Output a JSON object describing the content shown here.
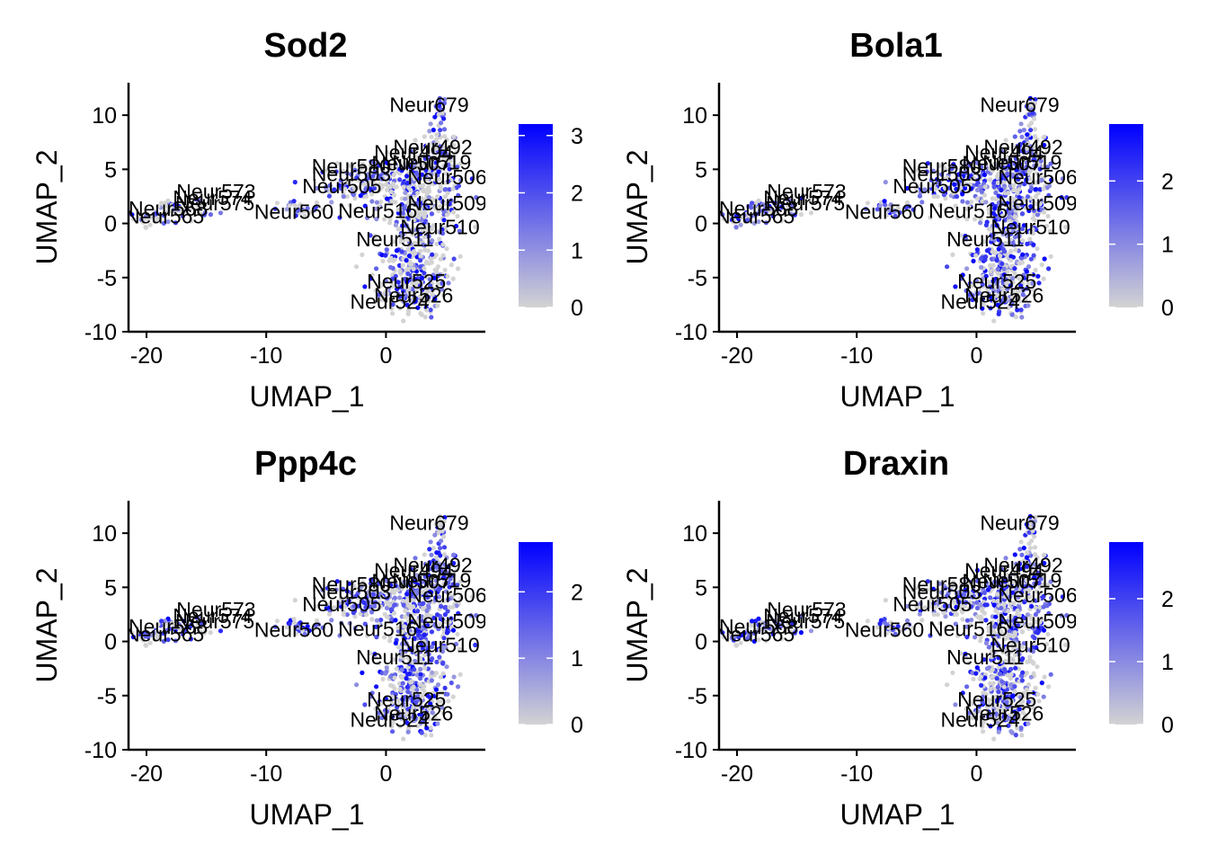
{
  "colors": {
    "low": "#d3d3d3",
    "high": "#0000ff",
    "mid": "#8f7fe6",
    "axis": "#000000"
  },
  "chart_data": [
    {
      "type": "scatter",
      "title": "Sod2",
      "xlabel": "UMAP_1",
      "ylabel": "UMAP_2",
      "xlim": [
        -21.5,
        8.3
      ],
      "ylim": [
        -10,
        13
      ],
      "xticks": [
        -20,
        -10,
        0
      ],
      "yticks": [
        -10,
        -5,
        0,
        5,
        10
      ],
      "legend": {
        "min": 0,
        "max": 3.2,
        "ticks": [
          0,
          1,
          2,
          3
        ],
        "position": "right"
      },
      "expression_level": 0.45,
      "cluster_labels": [
        {
          "text": "Neur679",
          "x": 0.3,
          "y": 10.3
        },
        {
          "text": "Neur492",
          "x": 0.6,
          "y": 6.4
        },
        {
          "text": "Neur494",
          "x": -1.0,
          "y": 5.9
        },
        {
          "text": "Neur519",
          "x": 0.5,
          "y": 5.0
        },
        {
          "text": "Neur507",
          "x": -1.2,
          "y": 4.9
        },
        {
          "text": "Neur506",
          "x": 1.8,
          "y": 3.6
        },
        {
          "text": "Neur580",
          "x": -6.2,
          "y": 4.6
        },
        {
          "text": "Neur503",
          "x": -6.2,
          "y": 3.9
        },
        {
          "text": "Neur505",
          "x": -7.0,
          "y": 2.8
        },
        {
          "text": "Neur509",
          "x": 1.8,
          "y": 1.2
        },
        {
          "text": "Neur516",
          "x": -4.0,
          "y": 0.5
        },
        {
          "text": "Neur560",
          "x": -11.0,
          "y": 0.4
        },
        {
          "text": "Neur510",
          "x": 1.2,
          "y": -1.0
        },
        {
          "text": "Neur511",
          "x": -2.5,
          "y": -2.1
        },
        {
          "text": "Neur573",
          "x": -17.5,
          "y": 2.3
        },
        {
          "text": "Neur574",
          "x": -17.8,
          "y": 1.7
        },
        {
          "text": "Neur575",
          "x": -17.6,
          "y": 1.2
        },
        {
          "text": "Neur568",
          "x": -21.5,
          "y": 0.7
        },
        {
          "text": "Neur565",
          "x": -21.8,
          "y": 0.0
        },
        {
          "text": "Neur525",
          "x": -1.6,
          "y": -6.0
        },
        {
          "text": "Neur526",
          "x": -1.0,
          "y": -7.3
        },
        {
          "text": "Neur524",
          "x": -3.0,
          "y": -7.9
        }
      ]
    },
    {
      "type": "scatter",
      "title": "Bola1",
      "xlabel": "UMAP_1",
      "ylabel": "UMAP_2",
      "xlim": [
        -21.5,
        8.3
      ],
      "ylim": [
        -10,
        13
      ],
      "xticks": [
        -20,
        -10,
        0
      ],
      "yticks": [
        -10,
        -5,
        0,
        5,
        10
      ],
      "legend": {
        "min": 0,
        "max": 2.9,
        "ticks": [
          0,
          1,
          2
        ],
        "position": "right"
      },
      "expression_level": 0.55,
      "cluster_labels": [
        {
          "text": "Neur679",
          "x": 0.3,
          "y": 10.3
        },
        {
          "text": "Neur492",
          "x": 0.6,
          "y": 6.4
        },
        {
          "text": "Neur494",
          "x": -1.0,
          "y": 5.9
        },
        {
          "text": "Neur519",
          "x": 0.5,
          "y": 5.0
        },
        {
          "text": "Neur507",
          "x": -1.2,
          "y": 4.9
        },
        {
          "text": "Neur506",
          "x": 1.8,
          "y": 3.6
        },
        {
          "text": "Neur580",
          "x": -6.2,
          "y": 4.6
        },
        {
          "text": "Neur503",
          "x": -6.2,
          "y": 3.9
        },
        {
          "text": "Neur505",
          "x": -7.0,
          "y": 2.8
        },
        {
          "text": "Neur509",
          "x": 1.8,
          "y": 1.2
        },
        {
          "text": "Neur516",
          "x": -4.0,
          "y": 0.5
        },
        {
          "text": "Neur560",
          "x": -11.0,
          "y": 0.4
        },
        {
          "text": "Neur510",
          "x": 1.2,
          "y": -1.0
        },
        {
          "text": "Neur511",
          "x": -2.5,
          "y": -2.1
        },
        {
          "text": "Neur573",
          "x": -17.5,
          "y": 2.3
        },
        {
          "text": "Neur574",
          "x": -17.8,
          "y": 1.7
        },
        {
          "text": "Neur575",
          "x": -17.6,
          "y": 1.2
        },
        {
          "text": "Neur568",
          "x": -21.5,
          "y": 0.7
        },
        {
          "text": "Neur565",
          "x": -21.8,
          "y": 0.0
        },
        {
          "text": "Neur525",
          "x": -1.6,
          "y": -6.0
        },
        {
          "text": "Neur526",
          "x": -1.0,
          "y": -7.3
        },
        {
          "text": "Neur524",
          "x": -3.0,
          "y": -7.9
        }
      ]
    },
    {
      "type": "scatter",
      "title": "Ppp4c",
      "xlabel": "UMAP_1",
      "ylabel": "UMAP_2",
      "xlim": [
        -21.5,
        8.3
      ],
      "ylim": [
        -10,
        13
      ],
      "xticks": [
        -20,
        -10,
        0
      ],
      "yticks": [
        -10,
        -5,
        0,
        5,
        10
      ],
      "legend": {
        "min": 0,
        "max": 2.75,
        "ticks": [
          0,
          1,
          2
        ],
        "position": "right"
      },
      "expression_level": 0.6,
      "cluster_labels": [
        {
          "text": "Neur679",
          "x": 0.3,
          "y": 10.3
        },
        {
          "text": "Neur492",
          "x": 0.6,
          "y": 6.4
        },
        {
          "text": "Neur494",
          "x": -1.0,
          "y": 5.9
        },
        {
          "text": "Neur519",
          "x": 0.5,
          "y": 5.0
        },
        {
          "text": "Neur507",
          "x": -1.2,
          "y": 4.9
        },
        {
          "text": "Neur506",
          "x": 1.8,
          "y": 3.6
        },
        {
          "text": "Neur580",
          "x": -6.2,
          "y": 4.6
        },
        {
          "text": "Neur503",
          "x": -6.2,
          "y": 3.9
        },
        {
          "text": "Neur505",
          "x": -7.0,
          "y": 2.8
        },
        {
          "text": "Neur509",
          "x": 1.8,
          "y": 1.2
        },
        {
          "text": "Neur516",
          "x": -4.0,
          "y": 0.5
        },
        {
          "text": "Neur560",
          "x": -11.0,
          "y": 0.4
        },
        {
          "text": "Neur510",
          "x": 1.2,
          "y": -1.0
        },
        {
          "text": "Neur511",
          "x": -2.5,
          "y": -2.1
        },
        {
          "text": "Neur573",
          "x": -17.5,
          "y": 2.3
        },
        {
          "text": "Neur574",
          "x": -17.8,
          "y": 1.7
        },
        {
          "text": "Neur575",
          "x": -17.6,
          "y": 1.2
        },
        {
          "text": "Neur568",
          "x": -21.5,
          "y": 0.7
        },
        {
          "text": "Neur565",
          "x": -21.8,
          "y": 0.0
        },
        {
          "text": "Neur525",
          "x": -1.6,
          "y": -6.0
        },
        {
          "text": "Neur526",
          "x": -1.0,
          "y": -7.3
        },
        {
          "text": "Neur524",
          "x": -3.0,
          "y": -7.9
        }
      ]
    },
    {
      "type": "scatter",
      "title": "Draxin",
      "xlabel": "UMAP_1",
      "ylabel": "UMAP_2",
      "xlim": [
        -21.5,
        8.3
      ],
      "ylim": [
        -10,
        13
      ],
      "xticks": [
        -20,
        -10,
        0
      ],
      "yticks": [
        -10,
        -5,
        0,
        5,
        10
      ],
      "legend": {
        "min": 0,
        "max": 2.9,
        "ticks": [
          0,
          1,
          2
        ],
        "position": "right"
      },
      "expression_level": 0.5,
      "cluster_labels": [
        {
          "text": "Neur679",
          "x": 0.3,
          "y": 10.3
        },
        {
          "text": "Neur492",
          "x": 0.6,
          "y": 6.4
        },
        {
          "text": "Neur494",
          "x": -1.0,
          "y": 5.9
        },
        {
          "text": "Neur519",
          "x": 0.5,
          "y": 5.0
        },
        {
          "text": "Neur507",
          "x": -1.2,
          "y": 4.9
        },
        {
          "text": "Neur506",
          "x": 1.8,
          "y": 3.6
        },
        {
          "text": "Neur580",
          "x": -6.2,
          "y": 4.6
        },
        {
          "text": "Neur503",
          "x": -6.2,
          "y": 3.9
        },
        {
          "text": "Neur505",
          "x": -7.0,
          "y": 2.8
        },
        {
          "text": "Neur509",
          "x": 1.8,
          "y": 1.2
        },
        {
          "text": "Neur516",
          "x": -4.0,
          "y": 0.5
        },
        {
          "text": "Neur560",
          "x": -11.0,
          "y": 0.4
        },
        {
          "text": "Neur510",
          "x": 1.2,
          "y": -1.0
        },
        {
          "text": "Neur511",
          "x": -2.5,
          "y": -2.1
        },
        {
          "text": "Neur573",
          "x": -17.5,
          "y": 2.3
        },
        {
          "text": "Neur574",
          "x": -17.8,
          "y": 1.7
        },
        {
          "text": "Neur575",
          "x": -17.6,
          "y": 1.2
        },
        {
          "text": "Neur568",
          "x": -21.5,
          "y": 0.7
        },
        {
          "text": "Neur565",
          "x": -21.8,
          "y": 0.0
        },
        {
          "text": "Neur525",
          "x": -1.6,
          "y": -6.0
        },
        {
          "text": "Neur526",
          "x": -1.0,
          "y": -7.3
        },
        {
          "text": "Neur524",
          "x": -3.0,
          "y": -7.9
        }
      ]
    }
  ]
}
